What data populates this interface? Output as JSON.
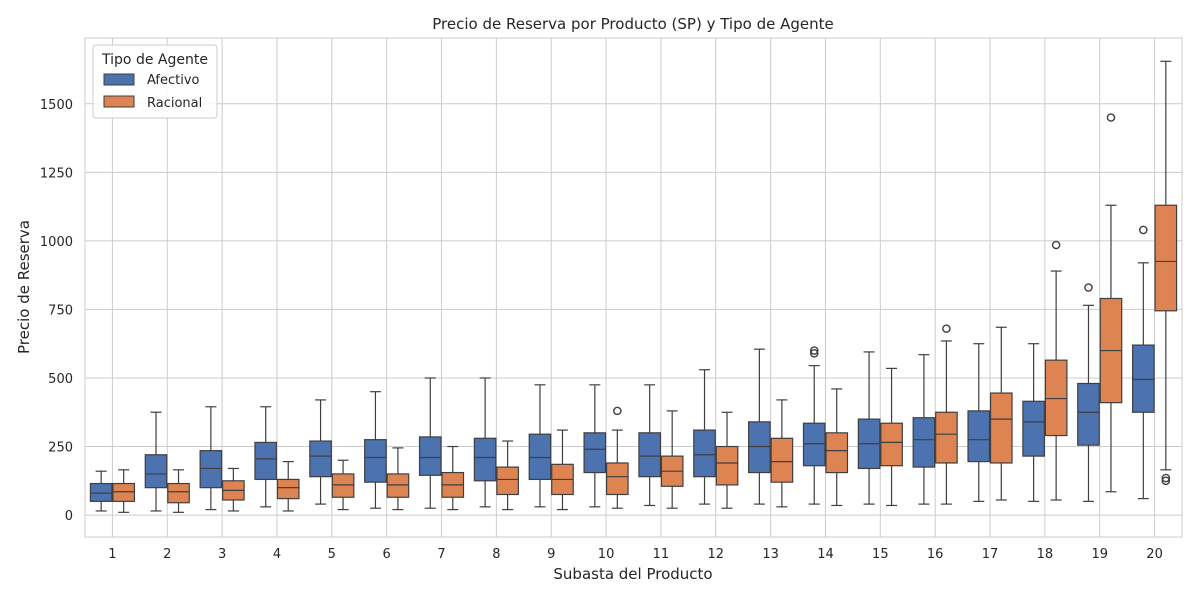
{
  "chart_data": {
    "type": "box",
    "title": "Precio de Reserva por Producto (SP) y Tipo de Agente",
    "xlabel": "Subasta del Producto",
    "ylabel": "Precio de Reserva",
    "ylim": [
      -80,
      1740
    ],
    "yticks": [
      0,
      250,
      500,
      750,
      1000,
      1250,
      1500
    ],
    "categories": [
      "1",
      "2",
      "3",
      "4",
      "5",
      "6",
      "7",
      "8",
      "9",
      "10",
      "11",
      "12",
      "13",
      "14",
      "15",
      "16",
      "17",
      "18",
      "19",
      "20"
    ],
    "grid": true,
    "legend": {
      "title": "Tipo de Agente",
      "position": "top-left"
    },
    "series": [
      {
        "name": "Afectivo",
        "color": "#4c72b0",
        "boxes": [
          {
            "whislo": 15,
            "q1": 50,
            "med": 80,
            "q3": 115,
            "whishi": 160,
            "fliers": []
          },
          {
            "whislo": 15,
            "q1": 100,
            "med": 150,
            "q3": 220,
            "whishi": 375,
            "fliers": []
          },
          {
            "whislo": 20,
            "q1": 100,
            "med": 170,
            "q3": 235,
            "whishi": 395,
            "fliers": []
          },
          {
            "whislo": 30,
            "q1": 130,
            "med": 205,
            "q3": 265,
            "whishi": 395,
            "fliers": []
          },
          {
            "whislo": 40,
            "q1": 140,
            "med": 215,
            "q3": 270,
            "whishi": 420,
            "fliers": []
          },
          {
            "whislo": 25,
            "q1": 120,
            "med": 210,
            "q3": 275,
            "whishi": 450,
            "fliers": []
          },
          {
            "whislo": 25,
            "q1": 145,
            "med": 210,
            "q3": 285,
            "whishi": 500,
            "fliers": []
          },
          {
            "whislo": 30,
            "q1": 125,
            "med": 210,
            "q3": 280,
            "whishi": 500,
            "fliers": []
          },
          {
            "whislo": 30,
            "q1": 130,
            "med": 210,
            "q3": 295,
            "whishi": 475,
            "fliers": []
          },
          {
            "whislo": 30,
            "q1": 155,
            "med": 240,
            "q3": 300,
            "whishi": 475,
            "fliers": []
          },
          {
            "whislo": 35,
            "q1": 140,
            "med": 215,
            "q3": 300,
            "whishi": 475,
            "fliers": []
          },
          {
            "whislo": 40,
            "q1": 140,
            "med": 220,
            "q3": 310,
            "whishi": 530,
            "fliers": []
          },
          {
            "whislo": 40,
            "q1": 155,
            "med": 250,
            "q3": 340,
            "whishi": 605,
            "fliers": []
          },
          {
            "whislo": 40,
            "q1": 180,
            "med": 260,
            "q3": 335,
            "whishi": 545,
            "fliers": [
              590,
              600
            ]
          },
          {
            "whislo": 40,
            "q1": 170,
            "med": 260,
            "q3": 350,
            "whishi": 595,
            "fliers": []
          },
          {
            "whislo": 40,
            "q1": 175,
            "med": 275,
            "q3": 355,
            "whishi": 585,
            "fliers": []
          },
          {
            "whislo": 50,
            "q1": 195,
            "med": 275,
            "q3": 380,
            "whishi": 625,
            "fliers": []
          },
          {
            "whislo": 50,
            "q1": 215,
            "med": 340,
            "q3": 415,
            "whishi": 625,
            "fliers": []
          },
          {
            "whislo": 50,
            "q1": 255,
            "med": 375,
            "q3": 480,
            "whishi": 765,
            "fliers": [
              830
            ]
          },
          {
            "whislo": 60,
            "q1": 375,
            "med": 495,
            "q3": 620,
            "whishi": 920,
            "fliers": [
              1040
            ]
          }
        ]
      },
      {
        "name": "Racional",
        "color": "#dd8452",
        "boxes": [
          {
            "whislo": 10,
            "q1": 50,
            "med": 85,
            "q3": 115,
            "whishi": 165,
            "fliers": []
          },
          {
            "whislo": 10,
            "q1": 45,
            "med": 85,
            "q3": 115,
            "whishi": 165,
            "fliers": []
          },
          {
            "whislo": 15,
            "q1": 55,
            "med": 90,
            "q3": 125,
            "whishi": 170,
            "fliers": []
          },
          {
            "whislo": 15,
            "q1": 60,
            "med": 100,
            "q3": 130,
            "whishi": 195,
            "fliers": []
          },
          {
            "whislo": 20,
            "q1": 65,
            "med": 110,
            "q3": 150,
            "whishi": 200,
            "fliers": []
          },
          {
            "whislo": 20,
            "q1": 65,
            "med": 110,
            "q3": 150,
            "whishi": 245,
            "fliers": []
          },
          {
            "whislo": 20,
            "q1": 65,
            "med": 110,
            "q3": 155,
            "whishi": 250,
            "fliers": []
          },
          {
            "whislo": 20,
            "q1": 75,
            "med": 130,
            "q3": 175,
            "whishi": 270,
            "fliers": []
          },
          {
            "whislo": 20,
            "q1": 75,
            "med": 130,
            "q3": 185,
            "whishi": 310,
            "fliers": []
          },
          {
            "whislo": 25,
            "q1": 75,
            "med": 140,
            "q3": 190,
            "whishi": 310,
            "fliers": [
              380
            ]
          },
          {
            "whislo": 25,
            "q1": 105,
            "med": 160,
            "q3": 215,
            "whishi": 380,
            "fliers": []
          },
          {
            "whislo": 25,
            "q1": 110,
            "med": 190,
            "q3": 250,
            "whishi": 375,
            "fliers": []
          },
          {
            "whislo": 30,
            "q1": 120,
            "med": 195,
            "q3": 280,
            "whishi": 420,
            "fliers": []
          },
          {
            "whislo": 35,
            "q1": 155,
            "med": 235,
            "q3": 300,
            "whishi": 460,
            "fliers": []
          },
          {
            "whislo": 35,
            "q1": 180,
            "med": 265,
            "q3": 335,
            "whishi": 535,
            "fliers": []
          },
          {
            "whislo": 40,
            "q1": 190,
            "med": 295,
            "q3": 375,
            "whishi": 635,
            "fliers": [
              680
            ]
          },
          {
            "whislo": 55,
            "q1": 190,
            "med": 350,
            "q3": 445,
            "whishi": 685,
            "fliers": []
          },
          {
            "whislo": 55,
            "q1": 290,
            "med": 425,
            "q3": 565,
            "whishi": 890,
            "fliers": [
              985
            ]
          },
          {
            "whislo": 85,
            "q1": 410,
            "med": 600,
            "q3": 790,
            "whishi": 1130,
            "fliers": [
              1450
            ]
          },
          {
            "whislo": 165,
            "q1": 745,
            "med": 925,
            "q3": 1130,
            "whishi": 1655,
            "fliers": [
              125,
              135
            ]
          }
        ]
      }
    ]
  }
}
